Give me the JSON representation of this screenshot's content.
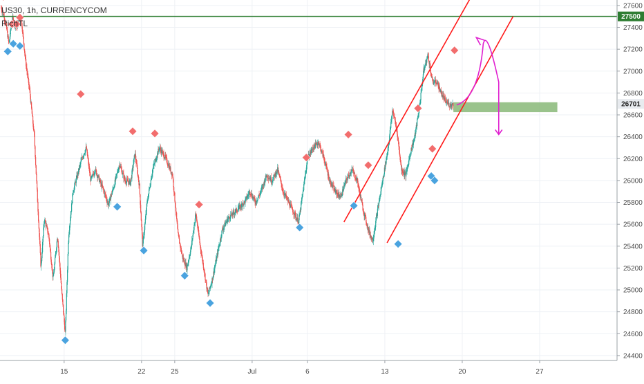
{
  "header": {
    "symbol_line": "US30, 1h, CURRENCYCOM",
    "indicator": "RichTL"
  },
  "colors": {
    "up_candle": "#26a69a",
    "down_candle": "#ef5350",
    "resistance_line": "#2e7d32",
    "channel": "#ff1a1a",
    "projection": "#e020d0",
    "zone": "#88b878",
    "marker_high": "#f26d6d",
    "marker_low": "#4aa3df",
    "grid": "#eef1f5"
  },
  "chart_data": {
    "type": "candlestick",
    "y_axis": {
      "ticks": [
        24400,
        24600,
        24800,
        25000,
        25200,
        25400,
        25600,
        25800,
        26000,
        26200,
        26400,
        26600,
        26800,
        27000,
        27200,
        27400,
        27600
      ],
      "range": [
        24355,
        27650
      ]
    },
    "x_axis": {
      "ticks": [
        {
          "label": "15",
          "t": 14
        },
        {
          "label": "22",
          "t": 21
        },
        {
          "label": "25",
          "t": 24
        },
        {
          "label": "Jul",
          "t": 31
        },
        {
          "label": "6",
          "t": 36
        },
        {
          "label": "13",
          "t": 43
        },
        {
          "label": "20",
          "t": 50
        },
        {
          "label": "27",
          "t": 57
        }
      ],
      "range": [
        8.2,
        64
      ]
    },
    "last_price": {
      "label": "26701",
      "value": 26701
    },
    "horizontal_level": {
      "label": "27500",
      "value": 27500
    },
    "anchors": [
      [
        8.3,
        27580
      ],
      [
        8.7,
        27450
      ],
      [
        9.0,
        27250
      ],
      [
        9.3,
        27480
      ],
      [
        9.7,
        27400
      ],
      [
        10.1,
        27500
      ],
      [
        10.5,
        27100
      ],
      [
        10.9,
        26800
      ],
      [
        11.3,
        26400
      ],
      [
        11.6,
        25800
      ],
      [
        11.9,
        25200
      ],
      [
        12.2,
        25650
      ],
      [
        12.6,
        25500
      ],
      [
        13.0,
        25100
      ],
      [
        13.4,
        25500
      ],
      [
        13.8,
        24950
      ],
      [
        14.1,
        24600
      ],
      [
        14.4,
        25500
      ],
      [
        14.8,
        25900
      ],
      [
        15.2,
        26050
      ],
      [
        15.6,
        26200
      ],
      [
        16.0,
        26300
      ],
      [
        16.4,
        26000
      ],
      [
        16.8,
        26100
      ],
      [
        17.2,
        26000
      ],
      [
        17.6,
        25900
      ],
      [
        18.0,
        25780
      ],
      [
        18.5,
        25950
      ],
      [
        19.0,
        26150
      ],
      [
        19.5,
        26000
      ],
      [
        20.0,
        25980
      ],
      [
        20.4,
        26250
      ],
      [
        20.8,
        25950
      ],
      [
        21.1,
        25400
      ],
      [
        21.5,
        25800
      ],
      [
        22.0,
        26100
      ],
      [
        22.6,
        26300
      ],
      [
        23.2,
        26200
      ],
      [
        23.8,
        26050
      ],
      [
        24.3,
        25500
      ],
      [
        24.7,
        25300
      ],
      [
        25.1,
        25200
      ],
      [
        25.5,
        25400
      ],
      [
        25.9,
        25700
      ],
      [
        26.3,
        25400
      ],
      [
        26.7,
        25150
      ],
      [
        27.0,
        24950
      ],
      [
        27.4,
        25100
      ],
      [
        27.8,
        25300
      ],
      [
        28.3,
        25550
      ],
      [
        28.8,
        25650
      ],
      [
        29.3,
        25700
      ],
      [
        29.8,
        25750
      ],
      [
        30.3,
        25800
      ],
      [
        30.8,
        25900
      ],
      [
        31.3,
        25800
      ],
      [
        31.8,
        25900
      ],
      [
        32.3,
        26050
      ],
      [
        32.8,
        26000
      ],
      [
        33.3,
        26100
      ],
      [
        33.8,
        25900
      ],
      [
        34.3,
        25800
      ],
      [
        34.8,
        25700
      ],
      [
        35.2,
        25620
      ],
      [
        35.6,
        25900
      ],
      [
        36.0,
        26200
      ],
      [
        36.5,
        26300
      ],
      [
        37.0,
        26350
      ],
      [
        37.5,
        26200
      ],
      [
        38.0,
        26000
      ],
      [
        38.5,
        25900
      ],
      [
        39.0,
        25850
      ],
      [
        39.5,
        26000
      ],
      [
        40.0,
        26100
      ],
      [
        40.5,
        26000
      ],
      [
        41.0,
        25750
      ],
      [
        41.5,
        25550
      ],
      [
        41.9,
        25450
      ],
      [
        42.3,
        25700
      ],
      [
        42.8,
        26000
      ],
      [
        43.3,
        26300
      ],
      [
        43.7,
        26650
      ],
      [
        44.1,
        26450
      ],
      [
        44.5,
        26100
      ],
      [
        44.9,
        26050
      ],
      [
        45.3,
        26250
      ],
      [
        45.7,
        26400
      ],
      [
        46.1,
        26650
      ],
      [
        46.5,
        27000
      ],
      [
        46.9,
        27150
      ],
      [
        47.3,
        26900
      ],
      [
        47.7,
        26900
      ],
      [
        48.1,
        26800
      ],
      [
        48.5,
        26720
      ],
      [
        48.9,
        26690
      ],
      [
        49.2,
        26701
      ]
    ],
    "markers_high": [
      [
        8.5,
        27680
      ],
      [
        9.3,
        27430
      ],
      [
        9.7,
        27430
      ],
      [
        10.0,
        27490
      ],
      [
        15.5,
        26790
      ],
      [
        20.2,
        26450
      ],
      [
        22.2,
        26430
      ],
      [
        26.2,
        25780
      ],
      [
        35.9,
        26210
      ],
      [
        39.7,
        26420
      ],
      [
        41.5,
        26140
      ],
      [
        46.0,
        26660
      ],
      [
        47.3,
        26290
      ],
      [
        49.3,
        27190
      ]
    ],
    "markers_low": [
      [
        8.9,
        27180
      ],
      [
        9.4,
        27250
      ],
      [
        10.0,
        27230
      ],
      [
        14.1,
        24540
      ],
      [
        18.8,
        25760
      ],
      [
        21.2,
        25360
      ],
      [
        24.9,
        25130
      ],
      [
        27.2,
        24880
      ],
      [
        35.3,
        25570
      ],
      [
        40.2,
        25770
      ],
      [
        44.2,
        25420
      ],
      [
        47.2,
        26040
      ],
      [
        47.5,
        26000
      ]
    ],
    "channel_upper": [
      [
        39.3,
        25620
      ],
      [
        51.2,
        27750
      ]
    ],
    "channel_lower": [
      [
        43.2,
        25430
      ],
      [
        54.6,
        27500
      ]
    ],
    "zone": {
      "t_start": 49.2,
      "t_end": 58.6,
      "y_low": 26625,
      "y_high": 26715
    },
    "projection_path": [
      [
        49.5,
        26690
      ],
      [
        51.5,
        26760
      ],
      [
        51.9,
        27250
      ],
      [
        52.6,
        27250
      ],
      [
        53.3,
        26900
      ],
      [
        53.3,
        26420
      ]
    ]
  }
}
